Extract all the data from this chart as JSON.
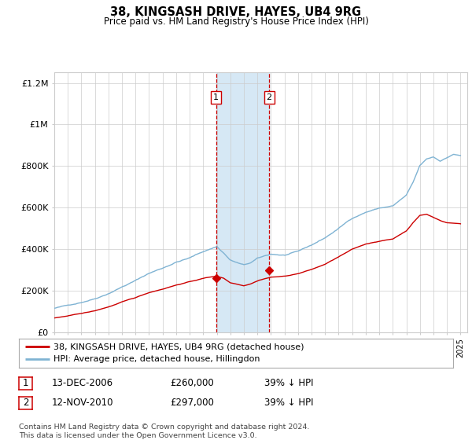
{
  "title": "38, KINGSASH DRIVE, HAYES, UB4 9RG",
  "subtitle": "Price paid vs. HM Land Registry's House Price Index (HPI)",
  "legend_line1": "38, KINGSASH DRIVE, HAYES, UB4 9RG (detached house)",
  "legend_line2": "HPI: Average price, detached house, Hillingdon",
  "footnote": "Contains HM Land Registry data © Crown copyright and database right 2024.\nThis data is licensed under the Open Government Licence v3.0.",
  "transaction1": {
    "label": "1",
    "date": "13-DEC-2006",
    "price": "£260,000",
    "pct": "39% ↓ HPI"
  },
  "transaction2": {
    "label": "2",
    "date": "12-NOV-2010",
    "price": "£297,000",
    "pct": "39% ↓ HPI"
  },
  "hpi_color": "#7fb3d3",
  "price_color": "#cc0000",
  "marker_color": "#cc0000",
  "vline_color": "#cc0000",
  "shade_color": "#d6e8f5",
  "background_color": "#ffffff",
  "grid_color": "#cccccc",
  "ylim": [
    0,
    1250000
  ],
  "yticks": [
    0,
    200000,
    400000,
    600000,
    800000,
    1000000,
    1200000
  ],
  "ytick_labels": [
    "£0",
    "£200K",
    "£400K",
    "£600K",
    "£800K",
    "£1M",
    "£1.2M"
  ],
  "year_start": 1995,
  "year_end": 2025.5,
  "trans1_year": 2006.95,
  "trans2_year": 2010.87,
  "trans1_price": 260000,
  "trans2_price": 297000
}
